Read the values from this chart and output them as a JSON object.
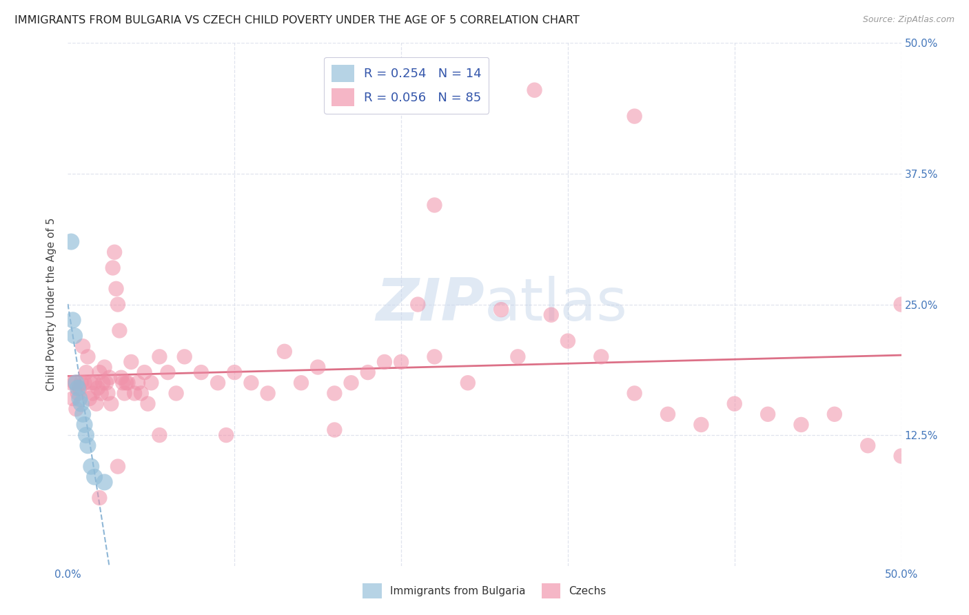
{
  "title": "IMMIGRANTS FROM BULGARIA VS CZECH CHILD POVERTY UNDER THE AGE OF 5 CORRELATION CHART",
  "source": "Source: ZipAtlas.com",
  "ylabel": "Child Poverty Under the Age of 5",
  "xlim": [
    0.0,
    0.5
  ],
  "ylim": [
    0.0,
    0.5
  ],
  "legend_entries": [
    {
      "label": "Immigrants from Bulgaria",
      "color": "#a8c8e8",
      "r": "0.254",
      "n": "14"
    },
    {
      "label": "Czechs",
      "color": "#f4a8b8",
      "r": "0.056",
      "n": "85"
    }
  ],
  "bulgaria_color": "#90bcd8",
  "czech_color": "#f090a8",
  "background_color": "#ffffff",
  "grid_color": "#e0e4f0",
  "watermark": "ZIPatlas",
  "watermark_color": "#dce8f4",
  "bulgaria_x": [
    0.002,
    0.003,
    0.004,
    0.005,
    0.006,
    0.007,
    0.008,
    0.009,
    0.01,
    0.011,
    0.012,
    0.014,
    0.016,
    0.022
  ],
  "bulgaria_y": [
    0.31,
    0.235,
    0.22,
    0.175,
    0.17,
    0.16,
    0.155,
    0.145,
    0.135,
    0.125,
    0.115,
    0.095,
    0.085,
    0.08
  ],
  "czech_x": [
    0.002,
    0.003,
    0.004,
    0.005,
    0.006,
    0.007,
    0.008,
    0.009,
    0.01,
    0.011,
    0.012,
    0.013,
    0.014,
    0.015,
    0.016,
    0.017,
    0.018,
    0.019,
    0.02,
    0.021,
    0.022,
    0.023,
    0.024,
    0.025,
    0.026,
    0.027,
    0.028,
    0.029,
    0.03,
    0.031,
    0.032,
    0.033,
    0.034,
    0.035,
    0.036,
    0.038,
    0.04,
    0.042,
    0.044,
    0.046,
    0.048,
    0.05,
    0.055,
    0.06,
    0.065,
    0.07,
    0.08,
    0.09,
    0.1,
    0.11,
    0.12,
    0.13,
    0.14,
    0.15,
    0.16,
    0.17,
    0.18,
    0.19,
    0.2,
    0.21,
    0.22,
    0.24,
    0.26,
    0.27,
    0.29,
    0.3,
    0.32,
    0.34,
    0.36,
    0.38,
    0.4,
    0.42,
    0.44,
    0.46,
    0.48,
    0.5,
    0.5,
    0.34,
    0.28,
    0.22,
    0.16,
    0.095,
    0.055,
    0.03,
    0.019
  ],
  "czech_y": [
    0.175,
    0.16,
    0.175,
    0.15,
    0.165,
    0.17,
    0.175,
    0.21,
    0.175,
    0.185,
    0.2,
    0.16,
    0.175,
    0.165,
    0.175,
    0.155,
    0.17,
    0.185,
    0.165,
    0.175,
    0.19,
    0.175,
    0.165,
    0.18,
    0.155,
    0.285,
    0.3,
    0.265,
    0.25,
    0.225,
    0.18,
    0.175,
    0.165,
    0.175,
    0.175,
    0.195,
    0.165,
    0.175,
    0.165,
    0.185,
    0.155,
    0.175,
    0.2,
    0.185,
    0.165,
    0.2,
    0.185,
    0.175,
    0.185,
    0.175,
    0.165,
    0.205,
    0.175,
    0.19,
    0.165,
    0.175,
    0.185,
    0.195,
    0.195,
    0.25,
    0.2,
    0.175,
    0.245,
    0.2,
    0.24,
    0.215,
    0.2,
    0.165,
    0.145,
    0.135,
    0.155,
    0.145,
    0.135,
    0.145,
    0.115,
    0.105,
    0.25,
    0.43,
    0.455,
    0.345,
    0.13,
    0.125,
    0.125,
    0.095,
    0.065
  ]
}
